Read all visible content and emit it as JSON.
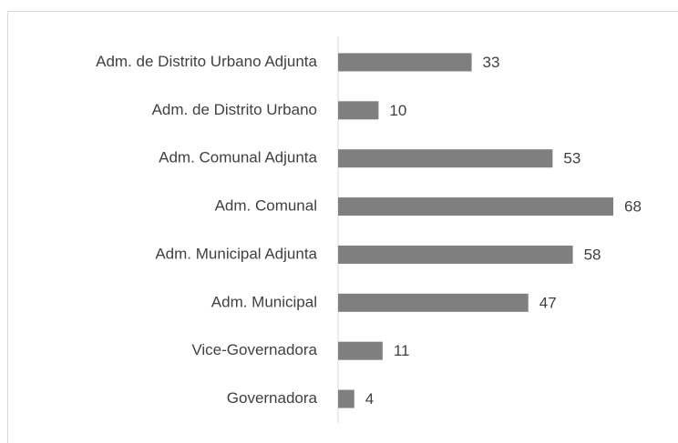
{
  "chart_data": {
    "type": "bar",
    "orientation": "horizontal",
    "categories": [
      "Adm. de Distrito Urbano Adjunta",
      "Adm. de Distrito Urbano",
      "Adm. Comunal Adjunta",
      "Adm. Comunal",
      "Adm. Municipal Adjunta",
      "Adm. Municipal",
      "Vice-Governadora",
      "Governadora"
    ],
    "values": [
      33,
      10,
      53,
      68,
      58,
      47,
      11,
      4
    ],
    "color": "#7f7f7f"
  }
}
